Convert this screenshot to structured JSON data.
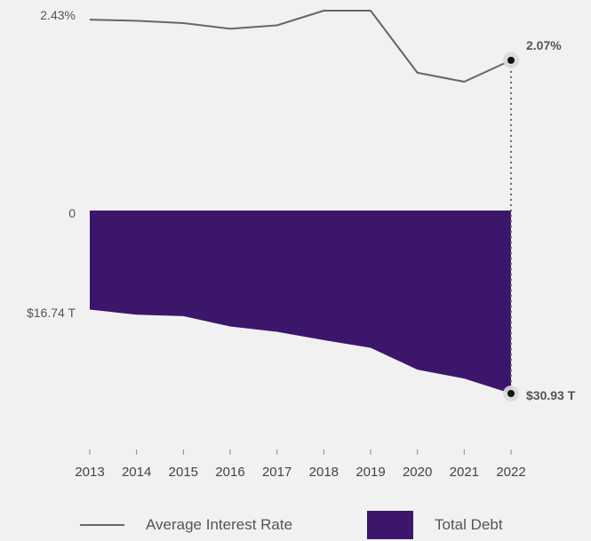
{
  "chart_data": {
    "type": "line+area",
    "categories": [
      "2013",
      "2014",
      "2015",
      "2016",
      "2017",
      "2018",
      "2019",
      "2020",
      "2021",
      "2022"
    ],
    "series": [
      {
        "name": "Average Interest Rate",
        "kind": "line",
        "unit": "%",
        "values": [
          2.43,
          2.42,
          2.4,
          2.35,
          2.38,
          2.51,
          2.51,
          1.96,
          1.88,
          2.07
        ]
      },
      {
        "name": "Total Debt",
        "kind": "area",
        "unit": "$T",
        "values": [
          16.74,
          17.6,
          17.85,
          19.6,
          20.5,
          21.9,
          23.2,
          26.9,
          28.4,
          30.93
        ]
      }
    ],
    "labels": {
      "rate_start": "2.43%",
      "rate_end": "2.07%",
      "debt_zero": "0",
      "debt_start": "$16.74 T",
      "debt_end": "$30.93 T"
    },
    "colors": {
      "line": "#666666",
      "area": "#3c166b",
      "marker": "#111111",
      "connector": "#666666"
    },
    "rate_range": [
      1.88,
      2.51
    ],
    "debt_range": [
      0,
      30.93
    ]
  },
  "legend": {
    "line_label": "Average Interest Rate",
    "area_label": "Total Debt"
  }
}
